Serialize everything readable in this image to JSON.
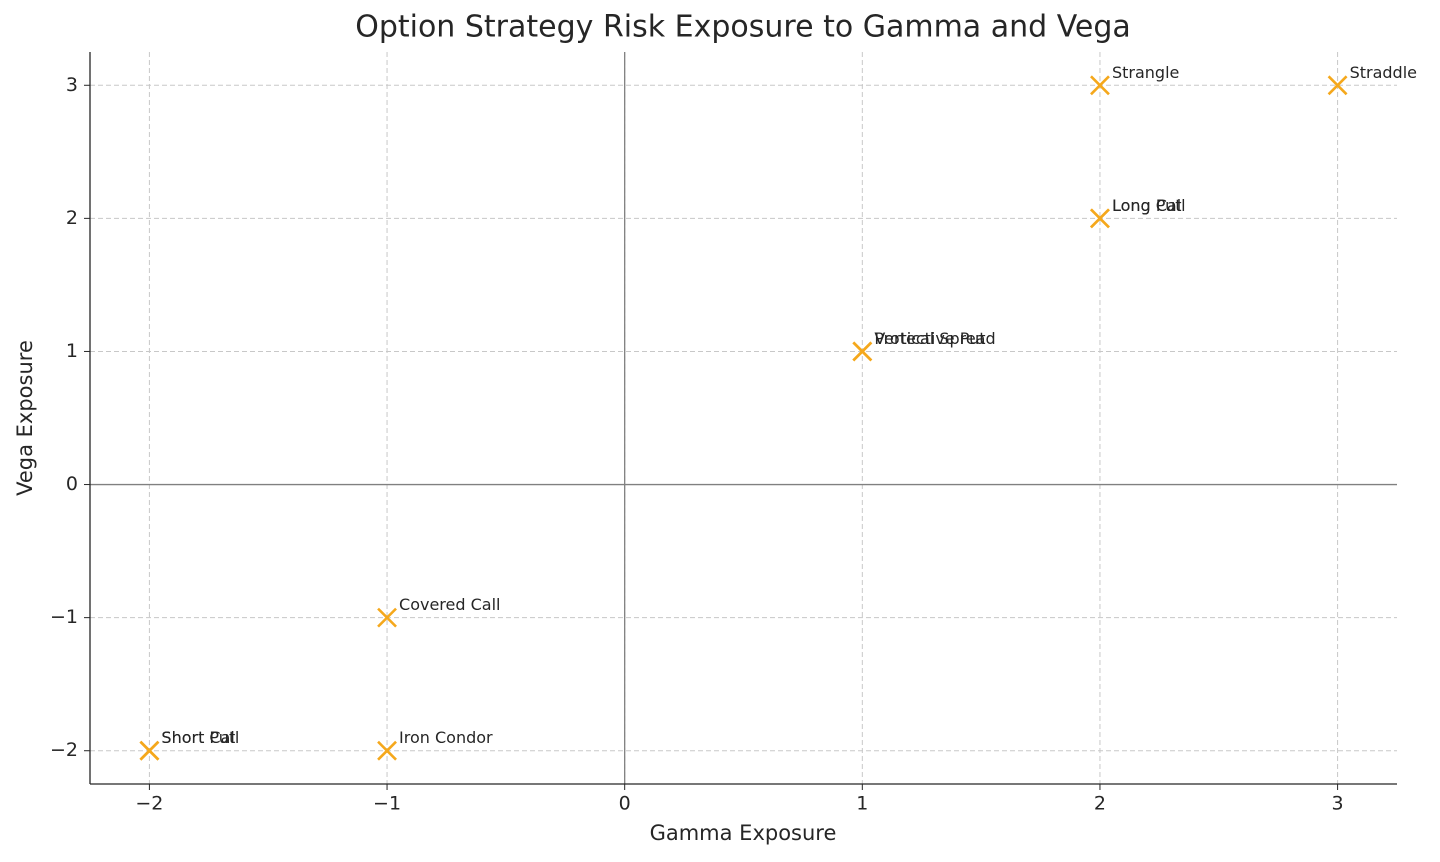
{
  "chart_data": {
    "type": "scatter",
    "title": "Option Strategy Risk Exposure to Gamma and Vega",
    "x_label": "Gamma Exposure",
    "y_label": "Vega Exposure",
    "point_labels": [
      "Long Call",
      "Long Put",
      "Short Call",
      "Short Put",
      "Covered Call",
      "Protective Put",
      "Vertical Spread",
      "Iron Condor",
      "Straddle",
      "Strangle"
    ],
    "x": [
      2,
      2,
      -2,
      -2,
      -1,
      1,
      1,
      -1,
      3,
      2
    ],
    "y": [
      2,
      2,
      -2,
      -2,
      -1,
      1,
      1,
      -2,
      3,
      3
    ],
    "color": "#f5a81c",
    "marker": "x",
    "xlim": [
      -2.25,
      3.25
    ],
    "ylim": [
      -2.25,
      3.25
    ],
    "xticks": [
      {
        "value": -2,
        "label": "−2"
      },
      {
        "value": -1,
        "label": "−1"
      },
      0,
      1,
      2,
      3
    ],
    "yticks": [
      {
        "value": -2,
        "label": "−2"
      },
      {
        "value": -1,
        "label": "−1"
      },
      0,
      1,
      2,
      3
    ],
    "grid": true,
    "zero_lines": true
  }
}
